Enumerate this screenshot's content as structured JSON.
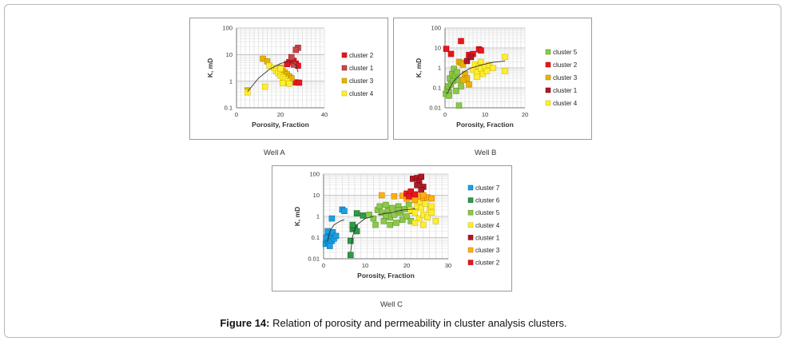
{
  "caption": {
    "label": "Figure 14:",
    "text": "Relation of porosity and permeability in cluster analysis clusters."
  },
  "colors": {
    "cluster 1": "#b0182a",
    "cluster 2": "#e8161e",
    "cluster 3": "#e8b404",
    "cluster 4": "#ffee30",
    "cluster 5": "#8cc84c",
    "cluster 6": "#2e9a4a",
    "cluster 7": "#1ea0e0",
    "cluster 1 (well A)": "#c8484e"
  },
  "chart_data": [
    {
      "type": "scatter",
      "id": "well-a",
      "title": "Well A",
      "xlabel": "Porosity, Fraction",
      "ylabel": "K, mD",
      "xlim": [
        0,
        40
      ],
      "ylim": [
        0.1,
        100
      ],
      "yscale": "log",
      "xticks": [
        "0",
        "20",
        "40"
      ],
      "yticks": [
        "0.1",
        "1",
        "10",
        "100"
      ],
      "grid": true,
      "legend_position": "right",
      "legend": [
        "cluster 2",
        "cluster 1",
        "cluster 3",
        "cluster 4"
      ],
      "series": [
        {
          "name": "cluster 2",
          "color": "#e8161e",
          "points": [
            [
              26,
              5.8
            ],
            [
              24,
              5.2
            ],
            [
              27,
              4.6
            ],
            [
              28,
              3.8
            ],
            [
              23,
              4.4
            ],
            [
              27,
              0.9
            ],
            [
              28.5,
              0.88
            ]
          ]
        },
        {
          "name": "cluster 1",
          "color": "#c8484e",
          "points": [
            [
              28,
              18
            ],
            [
              27,
              15
            ],
            [
              25,
              8
            ],
            [
              26,
              4.2
            ]
          ]
        },
        {
          "name": "cluster 3",
          "color": "#e8b404",
          "points": [
            [
              5,
              0.45
            ],
            [
              12,
              7
            ],
            [
              14,
              5.6
            ],
            [
              20,
              3.2
            ],
            [
              21,
              2.5
            ],
            [
              22,
              2.1
            ],
            [
              23,
              1.8
            ],
            [
              24,
              1.5
            ],
            [
              25,
              1.3
            ],
            [
              23,
              0.9
            ]
          ]
        },
        {
          "name": "cluster 4",
          "color": "#ffee30",
          "points": [
            [
              5,
              0.38
            ],
            [
              13,
              0.62
            ],
            [
              15,
              3.8
            ],
            [
              17,
              3.2
            ],
            [
              18,
              2.4
            ],
            [
              19,
              2
            ],
            [
              20,
              1.6
            ],
            [
              21,
              1.4
            ],
            [
              22,
              1.2
            ],
            [
              23,
              1
            ],
            [
              21,
              0.85
            ],
            [
              24,
              0.8
            ],
            [
              20,
              2.9
            ]
          ]
        }
      ],
      "trendline": [
        [
          5,
          0.4
        ],
        [
          10,
          1.3
        ],
        [
          15,
          2.8
        ],
        [
          20,
          4.6
        ],
        [
          24,
          5.6
        ],
        [
          27,
          4.2
        ],
        [
          28,
          2.2
        ]
      ]
    },
    {
      "type": "scatter",
      "id": "well-b",
      "title": "Well B",
      "xlabel": "Porosity, Fraction",
      "ylabel": "K, mD",
      "xlim": [
        0,
        20
      ],
      "ylim": [
        0.01,
        100
      ],
      "yscale": "log",
      "xticks": [
        "0",
        "10",
        "20"
      ],
      "yticks": [
        "0.01",
        "0.1",
        "1",
        "10",
        "100"
      ],
      "grid": true,
      "legend_position": "right",
      "legend": [
        "cluster 5",
        "cluster 2",
        "cluster 3",
        "cluster 1",
        "cluster 4"
      ],
      "series": [
        {
          "name": "cluster 5",
          "color": "#8cc84c",
          "points": [
            [
              0.2,
              0.05
            ],
            [
              0.5,
              0.08
            ],
            [
              0.8,
              0.12
            ],
            [
              1,
              0.06
            ],
            [
              1.2,
              0.3
            ],
            [
              1.5,
              0.15
            ],
            [
              1.8,
              0.5
            ],
            [
              2,
              0.22
            ],
            [
              2.2,
              0.9
            ],
            [
              2.5,
              0.4
            ],
            [
              2.8,
              0.07
            ],
            [
              3,
              0.6
            ],
            [
              3.2,
              0.25
            ],
            [
              3.5,
              0.013
            ],
            [
              1,
              0.04
            ],
            [
              4,
              0.12
            ]
          ]
        },
        {
          "name": "cluster 2",
          "color": "#e8161e",
          "points": [
            [
              0.3,
              9
            ],
            [
              1.5,
              5
            ],
            [
              4,
              22
            ],
            [
              6,
              4.5
            ],
            [
              7,
              5
            ],
            [
              8.5,
              8.5
            ],
            [
              9,
              7.5
            ]
          ]
        },
        {
          "name": "cluster 3",
          "color": "#e8b404",
          "points": [
            [
              3.5,
              2
            ],
            [
              4,
              1.8
            ],
            [
              4.5,
              1.5
            ],
            [
              5,
              0.5
            ],
            [
              5.5,
              0.3
            ],
            [
              4.5,
              0.25
            ],
            [
              6,
              0.15
            ]
          ]
        },
        {
          "name": "cluster 1",
          "color": "#b0182a",
          "points": [
            [
              5.5,
              2.2
            ],
            [
              6.5,
              3.5
            ]
          ]
        },
        {
          "name": "cluster 4",
          "color": "#ffee30",
          "points": [
            [
              7,
              0.8
            ],
            [
              7.5,
              1.5
            ],
            [
              8,
              0.6
            ],
            [
              8.5,
              1.2
            ],
            [
              9,
              0.9
            ],
            [
              9.5,
              0.5
            ],
            [
              10,
              1.1
            ],
            [
              10.5,
              0.7
            ],
            [
              11,
              1.4
            ],
            [
              12,
              1
            ],
            [
              15,
              0.7
            ],
            [
              15,
              3.5
            ],
            [
              8,
              0.35
            ],
            [
              9,
              2
            ]
          ]
        }
      ],
      "trendline": [
        [
          0.5,
          0.05
        ],
        [
          2,
          0.2
        ],
        [
          4,
          0.5
        ],
        [
          6,
          0.9
        ],
        [
          9,
          1.4
        ],
        [
          12,
          1.9
        ],
        [
          15,
          2.2
        ]
      ]
    },
    {
      "type": "scatter",
      "id": "well-c",
      "title": "Well C",
      "xlabel": "Porosity, Fraction",
      "ylabel": "K, mD",
      "xlim": [
        0,
        30
      ],
      "ylim": [
        0.01,
        100
      ],
      "yscale": "log",
      "xticks": [
        "0",
        "10",
        "20",
        "30"
      ],
      "yticks": [
        "0.01",
        "0.1",
        "1",
        "10",
        "100"
      ],
      "grid": true,
      "legend_position": "right",
      "legend": [
        "cluster 7",
        "cluster 6",
        "cluster 5",
        "cluster 4",
        "cluster 1",
        "cluster 3",
        "cluster 2"
      ],
      "series": [
        {
          "name": "cluster 7",
          "color": "#1ea0e0",
          "points": [
            [
              0.5,
              0.05
            ],
            [
              0.8,
              0.08
            ],
            [
              1,
              0.12
            ],
            [
              1.2,
              0.06
            ],
            [
              1.5,
              0.15
            ],
            [
              1.8,
              0.1
            ],
            [
              2,
              0.07
            ],
            [
              2.2,
              0.18
            ],
            [
              2.5,
              0.09
            ],
            [
              1,
              0.2
            ],
            [
              0.6,
              0.1
            ],
            [
              1.5,
              0.04
            ],
            [
              2,
              0.8
            ],
            [
              4.5,
              2.1
            ],
            [
              5,
              1.8
            ],
            [
              3,
              0.12
            ]
          ]
        },
        {
          "name": "cluster 6",
          "color": "#2e9a4a",
          "points": [
            [
              6.5,
              0.015
            ],
            [
              6.5,
              0.07
            ],
            [
              7,
              0.25
            ],
            [
              7.5,
              0.3
            ],
            [
              8,
              0.2
            ],
            [
              8,
              1.4
            ],
            [
              9.5,
              1.1
            ],
            [
              7,
              0.4
            ]
          ]
        },
        {
          "name": "cluster 5",
          "color": "#8cc84c",
          "points": [
            [
              11,
              1.2
            ],
            [
              12,
              0.8
            ],
            [
              13,
              2
            ],
            [
              14,
              1.5
            ],
            [
              14.5,
              0.6
            ],
            [
              15,
              3.5
            ],
            [
              15.5,
              1.8
            ],
            [
              16,
              0.9
            ],
            [
              16.5,
              2.5
            ],
            [
              17,
              1.2
            ],
            [
              17.5,
              0.5
            ],
            [
              18,
              3
            ],
            [
              18.5,
              1.5
            ],
            [
              19,
              0.7
            ],
            [
              19.5,
              2.2
            ],
            [
              20,
              1
            ],
            [
              20.5,
              3.5
            ],
            [
              21,
              0.6
            ],
            [
              21.5,
              1.8
            ],
            [
              12.5,
              0.4
            ],
            [
              16,
              0.4
            ],
            [
              13.5,
              3
            ],
            [
              18,
              2
            ],
            [
              15,
              1.1
            ]
          ]
        },
        {
          "name": "cluster 4",
          "color": "#ffee30",
          "points": [
            [
              21,
              2
            ],
            [
              22,
              1.5
            ],
            [
              22.5,
              3
            ],
            [
              23,
              0.8
            ],
            [
              23.5,
              2.5
            ],
            [
              24,
              1.2
            ],
            [
              24.5,
              4
            ],
            [
              25,
              0.9
            ],
            [
              25.5,
              2
            ],
            [
              26,
              1.5
            ],
            [
              27,
              0.6
            ],
            [
              22,
              0.5
            ],
            [
              24,
              0.4
            ],
            [
              23,
              5
            ],
            [
              26,
              3
            ]
          ]
        },
        {
          "name": "cluster 1",
          "color": "#b0182a",
          "points": [
            [
              21.5,
              60
            ],
            [
              22.5,
              65
            ],
            [
              23,
              45
            ],
            [
              23.5,
              75
            ],
            [
              24,
              25
            ],
            [
              22.5,
              30
            ],
            [
              23.5,
              18
            ]
          ]
        },
        {
          "name": "cluster 3",
          "color": "#ffb010",
          "points": [
            [
              14,
              10
            ],
            [
              17,
              9
            ],
            [
              19,
              9.5
            ],
            [
              20,
              9
            ],
            [
              21,
              8
            ],
            [
              22,
              9
            ],
            [
              23,
              8.5
            ],
            [
              24,
              7.5
            ],
            [
              25,
              8
            ],
            [
              26,
              7
            ],
            [
              22,
              6
            ],
            [
              24,
              10
            ],
            [
              20,
              7
            ]
          ]
        },
        {
          "name": "cluster 2",
          "color": "#e8161e",
          "points": [
            [
              20,
              12
            ],
            [
              21,
              15
            ],
            [
              22,
              11
            ],
            [
              20.5,
              9
            ]
          ]
        }
      ],
      "trendlines": [
        [
          [
            0.8,
            0.06
          ],
          [
            1.5,
            0.2
          ],
          [
            2.5,
            0.4
          ],
          [
            4,
            0.6
          ],
          [
            5,
            0.7
          ]
        ],
        [
          [
            6.5,
            0.02
          ],
          [
            7,
            0.12
          ],
          [
            8,
            0.4
          ],
          [
            10,
            0.8
          ],
          [
            12,
            1
          ]
        ],
        [
          [
            13,
            1.2
          ],
          [
            16,
            1.5
          ],
          [
            19,
            2
          ],
          [
            22,
            2.3
          ]
        ]
      ]
    }
  ]
}
